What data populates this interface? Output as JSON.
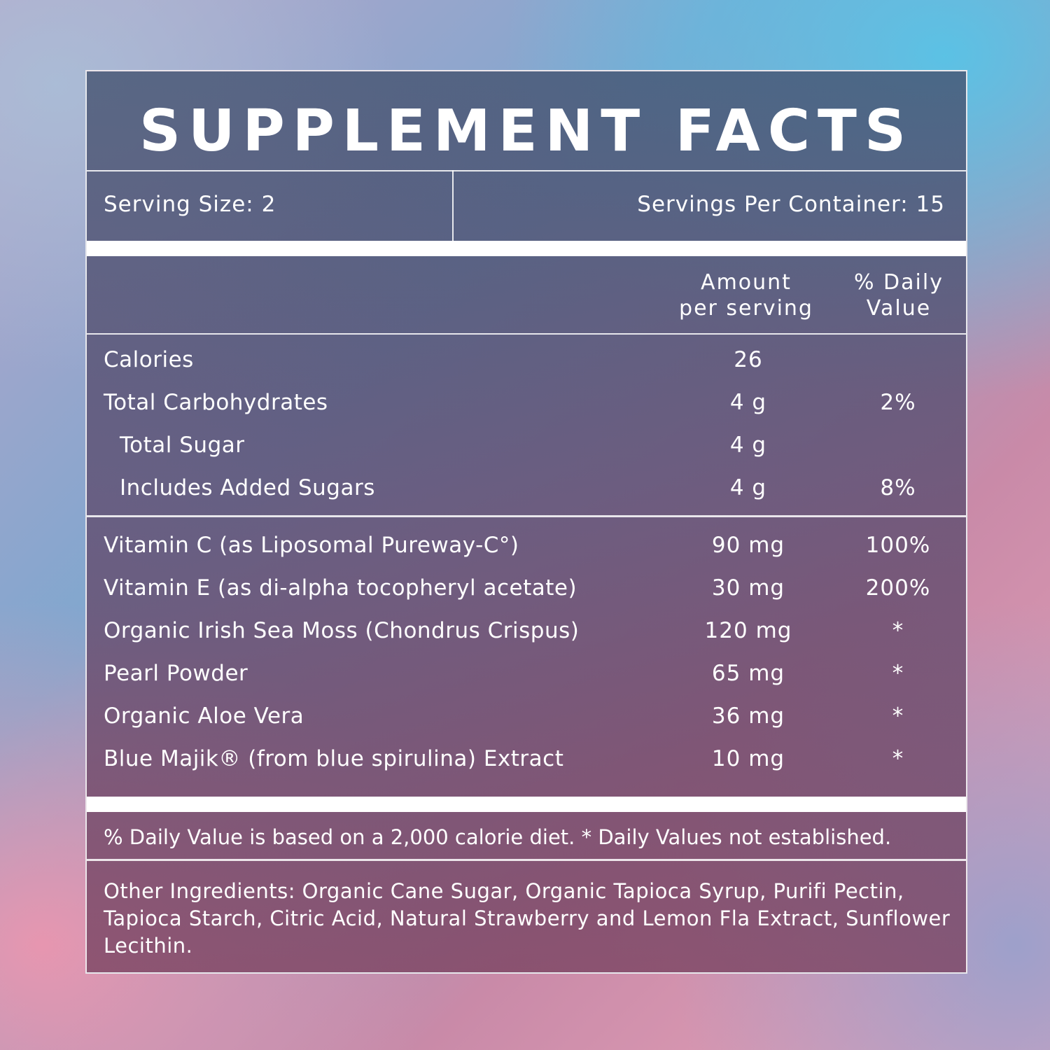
{
  "title": "SUPPLEMENT FACTS",
  "serving_size": "Serving Size: 2",
  "servings_per_container": "Servings Per Container: 15",
  "columns": {
    "amount_line1": "Amount",
    "amount_line2": "per serving",
    "dv_line1": "% Daily",
    "dv_line2": "Value"
  },
  "section1": [
    {
      "name": "Calories",
      "amount": "26",
      "dv": ""
    },
    {
      "name": "Total Carbohydrates",
      "amount": "4 g",
      "dv": "2%"
    },
    {
      "name": "Total Sugar",
      "amount": "4 g",
      "dv": ""
    },
    {
      "name": "Includes Added Sugars",
      "amount": "4 g",
      "dv": "8%"
    }
  ],
  "section2": [
    {
      "name": "Vitamin C (as Liposomal Pureway-C°)",
      "amount": "90 mg",
      "dv": "100%"
    },
    {
      "name": "Vitamin E (as di-alpha tocopheryl acetate)",
      "amount": "30 mg",
      "dv": "200%"
    },
    {
      "name": "Organic Irish Sea Moss (Chondrus Crispus)",
      "amount": "120 mg",
      "dv": "*"
    },
    {
      "name": "Pearl Powder",
      "amount": "65 mg",
      "dv": "*"
    },
    {
      "name": "Organic Aloe Vera",
      "amount": "36 mg",
      "dv": "*"
    },
    {
      "name": "Blue Majik® (from blue spirulina) Extract",
      "amount": "10 mg",
      "dv": "*"
    }
  ],
  "footnote": "% Daily Value is based on a 2,000 calorie diet. * Daily Values not established.",
  "other_ingredients": "Other Ingredients: Organic Cane Sugar, Organic Tapioca Syrup, Purifi Pectin, Tapioca Starch, Citric Acid, Natural Strawberry and Lemon Fla Extract, Sunflower Lecithin."
}
